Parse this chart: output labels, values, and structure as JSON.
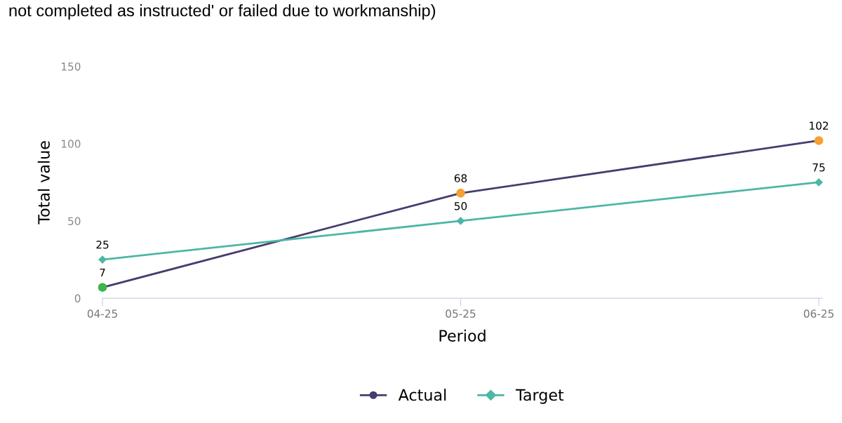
{
  "chart_data": {
    "type": "line",
    "title": "not completed as instructed' or failed due to workmanship)",
    "xlabel": "Period",
    "ylabel": "Total value",
    "categories": [
      "04-25",
      "05-25",
      "06-25"
    ],
    "series": [
      {
        "name": "Actual",
        "color": "#463c6e",
        "colors": [
          "#3db54a",
          "#f5a030",
          "#f5a030"
        ],
        "marker": "circle",
        "values": [
          7,
          68,
          102
        ]
      },
      {
        "name": "Target",
        "color": "#4db6a4",
        "marker": "diamond",
        "values": [
          25,
          50,
          75
        ]
      }
    ],
    "ylim": [
      0,
      150
    ],
    "yticks": [
      0,
      50,
      100,
      150
    ],
    "grid": false,
    "legend": "bottom",
    "data_labels": true,
    "line_style": "solid"
  }
}
